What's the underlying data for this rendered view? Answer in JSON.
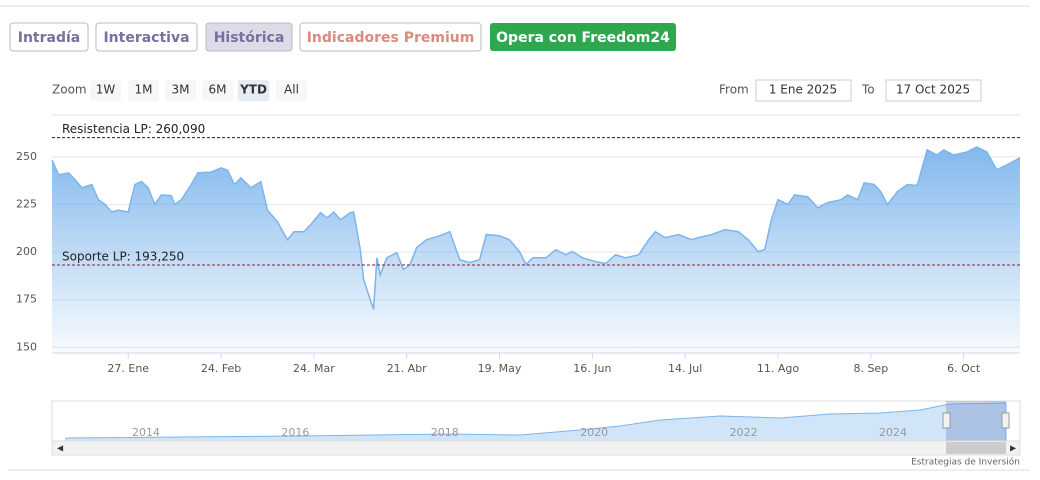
{
  "tabs": [
    {
      "label": "Intradía",
      "color": "#7a6f9e",
      "active": false
    },
    {
      "label": "Interactiva",
      "color": "#7a6f9e",
      "active": false
    },
    {
      "label": "Histórica",
      "color": "#7a6f9e",
      "active": true
    },
    {
      "label": "Indicadores Premium",
      "color": "#d98b7e",
      "active": false
    },
    {
      "label": "Opera con Freedom24",
      "color": "#ffffff",
      "background": "#2ea84e",
      "active": false
    }
  ],
  "zoom": {
    "label": "Zoom",
    "buttons": [
      "1W",
      "1M",
      "3M",
      "6M",
      "YTD",
      "All"
    ],
    "active": "YTD"
  },
  "range": {
    "from_label": "From",
    "from": "1 Ene 2025",
    "to_label": "To",
    "to": "17 Oct 2025"
  },
  "chart_data": {
    "type": "area",
    "color": "#7cb5ec",
    "x": [
      4,
      6,
      9,
      11,
      13,
      16,
      18,
      20,
      22,
      24,
      27,
      29,
      31,
      33,
      35,
      37,
      40,
      41,
      43,
      46,
      48,
      52,
      55,
      57,
      59,
      61,
      64,
      67,
      69,
      72,
      75,
      77,
      80,
      82,
      85,
      87,
      89,
      91,
      94,
      95,
      97,
      98,
      101,
      102,
      103,
      105,
      108,
      110,
      112,
      114,
      117,
      121,
      124,
      127,
      130,
      133,
      135,
      139,
      142,
      145,
      147,
      149,
      153,
      156,
      159,
      161,
      164,
      168,
      171,
      174,
      177,
      181,
      184,
      186,
      189,
      193,
      197,
      199,
      203,
      207,
      211,
      214,
      217,
      219,
      221,
      223,
      226,
      228,
      232,
      235,
      238,
      242,
      244,
      247,
      249,
      252,
      254,
      256,
      259,
      262,
      265,
      268,
      271,
      273,
      276,
      280,
      283,
      286,
      289,
      292,
      296
    ],
    "values": [
      248.4,
      240.6,
      241.6,
      238,
      233.8,
      235.5,
      227.5,
      225,
      221,
      222,
      221,
      235.5,
      237,
      233.8,
      225,
      230,
      229.6,
      225,
      227.5,
      235.5,
      241.6,
      242,
      244.2,
      243,
      235.5,
      239,
      233.8,
      237,
      222,
      216,
      206.5,
      210.7,
      210.7,
      214.4,
      220.7,
      218,
      221,
      216.9,
      220.7,
      221,
      201.3,
      185.6,
      169.9,
      197,
      188,
      197,
      199.7,
      190.8,
      193.5,
      202.4,
      206.5,
      208.6,
      210.7,
      196,
      194.5,
      196,
      209.2,
      208.6,
      206.5,
      200.3,
      193.5,
      197,
      197,
      201.3,
      198.6,
      200.3,
      197,
      195,
      194,
      198.6,
      197,
      198.6,
      206.5,
      210.7,
      207.6,
      209.2,
      206.5,
      207.6,
      209.2,
      211.8,
      210.7,
      206.5,
      200.3,
      201.3,
      217,
      227.5,
      225,
      230,
      229,
      223.3,
      226,
      227.5,
      230,
      227.5,
      236.4,
      235.5,
      231.7,
      225,
      231.7,
      235.5,
      235,
      253.7,
      251,
      253.7,
      251,
      252.6,
      255.2,
      252.6,
      243.2,
      245.8,
      249.5
    ],
    "xlim": [
      4,
      296
    ],
    "xticks": [
      {
        "value": 27,
        "label": "27. Ene"
      },
      {
        "value": 55,
        "label": "24. Feb"
      },
      {
        "value": 83,
        "label": "24. Mar"
      },
      {
        "value": 111,
        "label": "21. Abr"
      },
      {
        "value": 139,
        "label": "19. May"
      },
      {
        "value": 167,
        "label": "16. Jun"
      },
      {
        "value": 195,
        "label": "14. Jul"
      },
      {
        "value": 223,
        "label": "11. Ago"
      },
      {
        "value": 251,
        "label": "8. Sep"
      },
      {
        "value": 279,
        "label": "6. Oct"
      }
    ],
    "ylim": [
      147,
      272
    ],
    "yticks": [
      150,
      175,
      200,
      225,
      250
    ],
    "grid": true,
    "lines": [
      {
        "label": "Resistencia LP: 260,090",
        "value": 260.09,
        "color": "#222"
      },
      {
        "label": "Soporte LP: 193,250",
        "value": 193.25,
        "color": "#8b1a2b"
      }
    ]
  },
  "navigator": {
    "labels": [
      "2014",
      "2016",
      "2018",
      "2020",
      "2022",
      "2024"
    ]
  },
  "credit": "Estrategias de Inversión"
}
